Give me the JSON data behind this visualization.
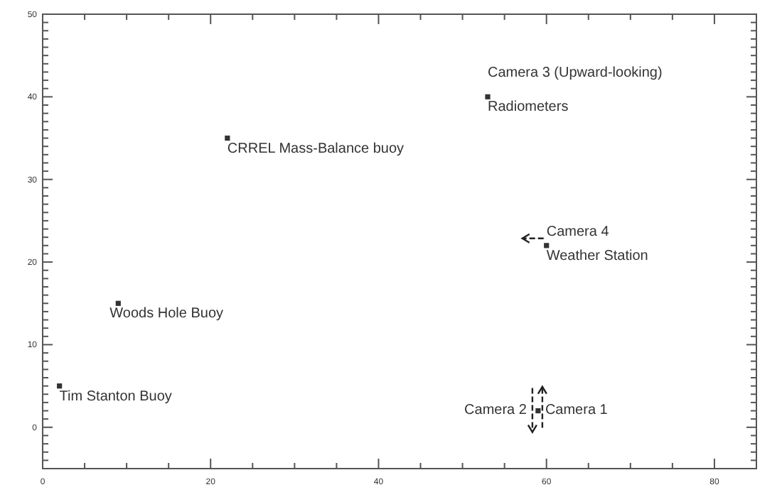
{
  "chart_data": {
    "type": "scatter",
    "marker": "square",
    "x": [
      2,
      9,
      22,
      53,
      60,
      59
    ],
    "series": [
      {
        "color": "#333333",
        "values": [
          5,
          15,
          35,
          40,
          22,
          2
        ]
      }
    ],
    "xlim": [
      0,
      85
    ],
    "ylim": [
      -5,
      50
    ],
    "xticks": [
      0,
      {
        "value": 5,
        "label": null
      },
      {
        "value": 10,
        "label": null
      },
      {
        "value": 15,
        "label": null
      },
      20,
      {
        "value": 25,
        "label": null
      },
      {
        "value": 30,
        "label": null
      },
      {
        "value": 35,
        "label": null
      },
      40,
      {
        "value": 45,
        "label": null
      },
      {
        "value": 50,
        "label": null
      },
      {
        "value": 55,
        "label": null
      },
      60,
      {
        "value": 65,
        "label": null
      },
      {
        "value": 70,
        "label": null
      },
      {
        "value": 75,
        "label": null
      },
      80
    ],
    "yticks": [
      {
        "value": -4,
        "label": null
      },
      {
        "value": -3,
        "label": null
      },
      {
        "value": -2,
        "label": null
      },
      {
        "value": -1,
        "label": null
      },
      0,
      {
        "value": 1,
        "label": null
      },
      {
        "value": 2,
        "label": null
      },
      {
        "value": 3,
        "label": null
      },
      {
        "value": 4,
        "label": null
      },
      {
        "value": 5,
        "label": null
      },
      {
        "value": 6,
        "label": null
      },
      {
        "value": 7,
        "label": null
      },
      {
        "value": 8,
        "label": null
      },
      {
        "value": 9,
        "label": null
      },
      10,
      {
        "value": 11,
        "label": null
      },
      {
        "value": 12,
        "label": null
      },
      {
        "value": 13,
        "label": null
      },
      {
        "value": 14,
        "label": null
      },
      {
        "value": 15,
        "label": null
      },
      {
        "value": 16,
        "label": null
      },
      {
        "value": 17,
        "label": null
      },
      {
        "value": 18,
        "label": null
      },
      {
        "value": 19,
        "label": null
      },
      20,
      {
        "value": 21,
        "label": null
      },
      {
        "value": 22,
        "label": null
      },
      {
        "value": 23,
        "label": null
      },
      {
        "value": 24,
        "label": null
      },
      {
        "value": 25,
        "label": null
      },
      {
        "value": 26,
        "label": null
      },
      {
        "value": 27,
        "label": null
      },
      {
        "value": 28,
        "label": null
      },
      {
        "value": 29,
        "label": null
      },
      30,
      {
        "value": 31,
        "label": null
      },
      {
        "value": 32,
        "label": null
      },
      {
        "value": 33,
        "label": null
      },
      {
        "value": 34,
        "label": null
      },
      {
        "value": 35,
        "label": null
      },
      {
        "value": 36,
        "label": null
      },
      {
        "value": 37,
        "label": null
      },
      {
        "value": 38,
        "label": null
      },
      {
        "value": 39,
        "label": null
      },
      40,
      {
        "value": 41,
        "label": null
      },
      {
        "value": 42,
        "label": null
      },
      {
        "value": 43,
        "label": null
      },
      {
        "value": 44,
        "label": null
      },
      {
        "value": 45,
        "label": null
      },
      {
        "value": 46,
        "label": null
      },
      {
        "value": 47,
        "label": null
      },
      {
        "value": 48,
        "label": null
      },
      {
        "value": 49,
        "label": null
      },
      50
    ],
    "annotations": [
      {
        "text": "Tim Stanton Buoy",
        "x": 2,
        "y": 5
      },
      {
        "text": "Woods Hole Buoy",
        "x": 9,
        "y": 15
      },
      {
        "text": "CRREL Mass-Balance buoy",
        "x": 22,
        "y": 35
      },
      {
        "text": "Camera 3 (Upward-looking)",
        "x": 53,
        "y": 40
      },
      {
        "text": "Radiometers",
        "x": 53,
        "y": 40
      },
      {
        "text": "Camera 4",
        "x": 60,
        "y": 22
      },
      {
        "text": "Weather Station",
        "x": 60,
        "y": 22
      },
      {
        "text": "Camera 2",
        "x": 59,
        "y": 2
      },
      {
        "text": "Camera 1",
        "x": 59,
        "y": 2
      }
    ]
  }
}
